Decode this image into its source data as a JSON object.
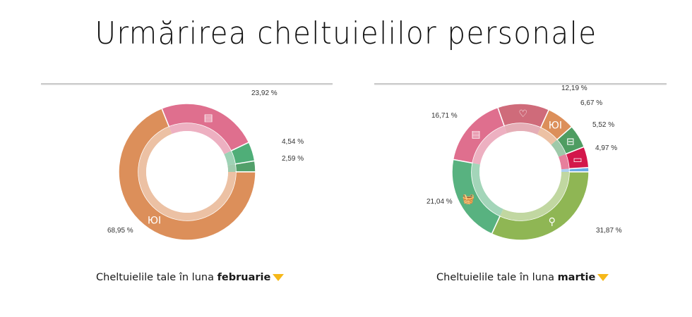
{
  "page": {
    "title": "Urmărirea cheltuielilor personale"
  },
  "charts": [
    {
      "caption_prefix": "Cheltuielile tale în luna",
      "month": "februarie",
      "dropdown_icon": "caret-down-icon",
      "caret_color": "#f6b819"
    },
    {
      "caption_prefix": "Cheltuielile tale în luna",
      "month": "martie",
      "dropdown_icon": "caret-down-icon",
      "caret_color": "#f6b819"
    }
  ],
  "chart_data": [
    {
      "type": "pie",
      "subtype": "donut",
      "title": "Cheltuielile tale în luna februarie",
      "start_angle": "3 o'clock, counter-clockwise",
      "slices": [
        {
          "label": "2,59 %",
          "value": 2.59,
          "category": "other-green",
          "icon": "",
          "color": "#52a06a"
        },
        {
          "label": "4,54 %",
          "value": 4.54,
          "category": "groceries",
          "icon": "basket-icon",
          "color": "#4fae78"
        },
        {
          "label": "23,92 %",
          "value": 23.92,
          "category": "bills",
          "icon": "receipt-icon",
          "color": "#df6f8e"
        },
        {
          "label": "68,95 %",
          "value": 68.95,
          "category": "dining",
          "icon": "dining-icon",
          "color": "#dc8f5a"
        }
      ]
    },
    {
      "type": "pie",
      "subtype": "donut",
      "title": "Cheltuielile tale în luna martie",
      "start_angle": "3 o'clock, counter-clockwise",
      "slices": [
        {
          "label": "",
          "value": 1.03,
          "category": "other-blue",
          "icon": "",
          "color": "#6aa9e6"
        },
        {
          "label": "4,97 %",
          "value": 4.97,
          "category": "electronics",
          "icon": "wallet-icon",
          "color": "#d3174b"
        },
        {
          "label": "5,52 %",
          "value": 5.52,
          "category": "transport",
          "icon": "bus-icon",
          "color": "#4f9d62"
        },
        {
          "label": "6,67 %",
          "value": 6.67,
          "category": "dining",
          "icon": "dining-icon",
          "color": "#dc8f5a"
        },
        {
          "label": "12,19 %",
          "value": 12.19,
          "category": "health",
          "icon": "heart-icon",
          "color": "#cf6b7a"
        },
        {
          "label": "16,71 %",
          "value": 16.71,
          "category": "bills",
          "icon": "receipt-icon",
          "color": "#df6f8e"
        },
        {
          "label": "21,04 %",
          "value": 21.04,
          "category": "groceries",
          "icon": "basket-icon",
          "color": "#58b280"
        },
        {
          "label": "31,87 %",
          "value": 31.87,
          "category": "shopping",
          "icon": "shopping-icon",
          "color": "#8fb654"
        }
      ]
    }
  ]
}
